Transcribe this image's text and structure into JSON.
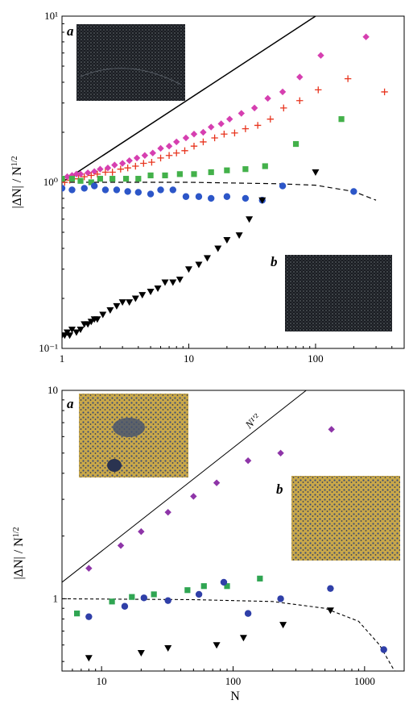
{
  "colors": {
    "magenta": "#d63fb0",
    "red": "#e8351f",
    "green": "#43b14a",
    "blue": "#2c56c8",
    "black": "#000000",
    "photo_dark": "#1a1d22",
    "photo_speckle": "#9aa0a8",
    "photo_gold": "#c9a84a",
    "photo_blue": "#3a4c78",
    "bottom_purple": "#8e35a8",
    "bottom_blue": "#2f3fa8",
    "bottom_green": "#2fa552"
  },
  "chart_data": [
    {
      "type": "scatter",
      "panel": "top",
      "xscale": "log",
      "yscale": "log",
      "xlim": [
        1,
        500
      ],
      "ylim": [
        0.1,
        10
      ],
      "xlabel": "",
      "ylabel": "|ΔN| / N¹′²",
      "x_tick_labels": [
        "1",
        "10",
        "100"
      ],
      "y_tick_labels": [
        "10⁻¹",
        "10⁰",
        "10¹"
      ],
      "inset_labels": [
        "a",
        "b"
      ],
      "reference_line": {
        "style": "solid",
        "slope": 0.5,
        "from": [
          1,
          1
        ],
        "to": [
          100,
          10
        ]
      },
      "fit_curve": {
        "style": "dashed",
        "points": [
          [
            1,
            1.0
          ],
          [
            10,
            1.0
          ],
          [
            50,
            0.98
          ],
          [
            100,
            0.96
          ],
          [
            200,
            0.88
          ],
          [
            300,
            0.78
          ]
        ]
      },
      "series": [
        {
          "marker": "diamond",
          "color": "magenta",
          "x": [
            1.0,
            1.1,
            1.2,
            1.3,
            1.4,
            1.6,
            1.8,
            2.0,
            2.3,
            2.6,
            3.0,
            3.4,
            3.9,
            4.5,
            5.2,
            6.0,
            7,
            8,
            9.5,
            11,
            13,
            15,
            18,
            21,
            26,
            33,
            42,
            55,
            75,
            110,
            250
          ],
          "y": [
            1.05,
            1.08,
            1.1,
            1.12,
            1.12,
            1.14,
            1.16,
            1.2,
            1.22,
            1.27,
            1.3,
            1.35,
            1.4,
            1.45,
            1.5,
            1.6,
            1.65,
            1.75,
            1.85,
            1.95,
            2.0,
            2.15,
            2.25,
            2.4,
            2.6,
            2.8,
            3.2,
            3.5,
            4.3,
            5.8,
            7.5
          ]
        },
        {
          "marker": "plus",
          "color": "red",
          "x": [
            1.05,
            1.15,
            1.25,
            1.35,
            1.5,
            1.7,
            1.9,
            2.2,
            2.5,
            2.9,
            3.3,
            3.8,
            4.4,
            5.1,
            6,
            7,
            8,
            9.3,
            11,
            13,
            16,
            19,
            23,
            28,
            35,
            44,
            56,
            75,
            105,
            180,
            350
          ],
          "y": [
            1.0,
            1.03,
            1.05,
            1.05,
            1.08,
            1.1,
            1.12,
            1.15,
            1.15,
            1.2,
            1.22,
            1.25,
            1.3,
            1.32,
            1.4,
            1.45,
            1.5,
            1.55,
            1.65,
            1.75,
            1.85,
            1.95,
            1.98,
            2.1,
            2.2,
            2.4,
            2.8,
            3.1,
            3.6,
            4.2,
            3.5
          ]
        },
        {
          "marker": "square",
          "color": "green",
          "x": [
            1.0,
            1.2,
            1.4,
            1.7,
            2.0,
            2.5,
            3.2,
            4.0,
            5.0,
            6.5,
            8.5,
            11,
            15,
            20,
            28,
            40,
            70,
            160
          ],
          "y": [
            1.05,
            1.05,
            1.02,
            1.0,
            1.05,
            1.05,
            1.05,
            1.05,
            1.1,
            1.1,
            1.12,
            1.12,
            1.15,
            1.18,
            1.2,
            1.25,
            1.7,
            2.4
          ]
        },
        {
          "marker": "circle",
          "color": "blue",
          "x": [
            1.0,
            1.2,
            1.5,
            1.8,
            2.2,
            2.7,
            3.3,
            4.0,
            5.0,
            6.0,
            7.5,
            9.5,
            12,
            15,
            20,
            28,
            38,
            55,
            200
          ],
          "y": [
            0.92,
            0.9,
            0.92,
            0.95,
            0.9,
            0.9,
            0.88,
            0.87,
            0.85,
            0.9,
            0.9,
            0.82,
            0.82,
            0.8,
            0.82,
            0.8,
            0.78,
            0.95,
            0.88
          ]
        },
        {
          "marker": "triangle-down",
          "color": "black",
          "x": [
            1.0,
            1.05,
            1.1,
            1.15,
            1.2,
            1.3,
            1.4,
            1.5,
            1.6,
            1.7,
            1.8,
            1.9,
            2.1,
            2.4,
            2.7,
            3.0,
            3.4,
            3.8,
            4.3,
            5.0,
            5.7,
            6.5,
            7.5,
            8.5,
            10,
            12,
            14,
            17,
            20,
            25,
            30,
            38,
            100
          ],
          "y": [
            0.12,
            0.12,
            0.125,
            0.12,
            0.13,
            0.125,
            0.13,
            0.14,
            0.14,
            0.145,
            0.15,
            0.15,
            0.16,
            0.17,
            0.18,
            0.19,
            0.19,
            0.2,
            0.21,
            0.22,
            0.23,
            0.25,
            0.25,
            0.26,
            0.3,
            0.32,
            0.35,
            0.4,
            0.45,
            0.48,
            0.6,
            0.78,
            1.15
          ]
        }
      ]
    },
    {
      "type": "scatter",
      "panel": "bottom",
      "xscale": "log",
      "yscale": "log",
      "xlim": [
        5,
        2000
      ],
      "ylim": [
        0.45,
        10
      ],
      "xlabel": "N",
      "ylabel": "|ΔN| / N¹′²",
      "x_tick_labels": [
        "10",
        "100",
        "1000"
      ],
      "y_tick_labels": [
        "1",
        "10"
      ],
      "inset_labels": [
        "a",
        "b"
      ],
      "reference_line": {
        "label": "N¹′²",
        "style": "solid",
        "slope": 0.5,
        "from": [
          5,
          1.2
        ],
        "to": [
          360,
          10
        ]
      },
      "fit_curve": {
        "style": "dashed",
        "points": [
          [
            5,
            1.0
          ],
          [
            50,
            0.99
          ],
          [
            200,
            0.97
          ],
          [
            500,
            0.9
          ],
          [
            900,
            0.78
          ],
          [
            1300,
            0.6
          ],
          [
            1800,
            0.42
          ]
        ]
      },
      "series": [
        {
          "marker": "diamond",
          "color": "bottom_purple",
          "x": [
            8,
            14,
            20,
            32,
            50,
            75,
            130,
            230,
            560
          ],
          "y": [
            1.4,
            1.8,
            2.1,
            2.6,
            3.1,
            3.6,
            4.6,
            5.0,
            6.5
          ]
        },
        {
          "marker": "square",
          "color": "bottom_green",
          "x": [
            6.5,
            12,
            17,
            25,
            45,
            60,
            90,
            160
          ],
          "y": [
            0.85,
            0.97,
            1.02,
            1.05,
            1.1,
            1.15,
            1.15,
            1.25
          ]
        },
        {
          "marker": "circle",
          "color": "bottom_blue",
          "x": [
            8,
            15,
            21,
            32,
            55,
            85,
            130,
            230,
            550,
            1400
          ],
          "y": [
            0.82,
            0.92,
            1.01,
            0.98,
            1.05,
            1.2,
            0.85,
            1.0,
            1.12,
            0.57
          ]
        },
        {
          "marker": "triangle-down",
          "color": "black",
          "x": [
            8,
            20,
            32,
            75,
            120,
            240,
            550
          ],
          "y": [
            0.52,
            0.55,
            0.58,
            0.6,
            0.65,
            0.75,
            0.88
          ]
        }
      ]
    }
  ]
}
